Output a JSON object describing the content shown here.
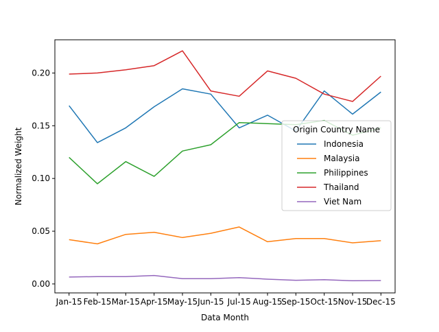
{
  "chart_data": {
    "type": "line",
    "title": "",
    "xlabel": "Data Month",
    "ylabel": "Normalized Weight",
    "categories": [
      "Jan-15",
      "Feb-15",
      "Mar-15",
      "Apr-15",
      "May-15",
      "Jun-15",
      "Jul-15",
      "Aug-15",
      "Sep-15",
      "Oct-15",
      "Nov-15",
      "Dec-15"
    ],
    "ylim": [
      -0.0085,
      0.2315
    ],
    "yticks": [
      0.0,
      0.05,
      0.1,
      0.15,
      0.2
    ],
    "ytick_labels": [
      "0.00",
      "0.05",
      "0.10",
      "0.15",
      "0.20"
    ],
    "grid": false,
    "legend": {
      "title": "Origin Country Name",
      "position": "center-right"
    },
    "series": [
      {
        "name": "Indonesia",
        "color": "#1f77b4",
        "values": [
          0.169,
          0.134,
          0.148,
          0.168,
          0.185,
          0.18,
          0.148,
          0.16,
          0.145,
          0.183,
          0.161,
          0.182
        ]
      },
      {
        "name": "Malaysia",
        "color": "#ff7f0e",
        "values": [
          0.042,
          0.038,
          0.047,
          0.049,
          0.044,
          0.048,
          0.054,
          0.04,
          0.043,
          0.043,
          0.039,
          0.041
        ]
      },
      {
        "name": "Philippines",
        "color": "#2ca02c",
        "values": [
          0.12,
          0.095,
          0.116,
          0.102,
          0.126,
          0.132,
          0.153,
          0.152,
          0.151,
          0.155,
          0.141,
          0.148
        ]
      },
      {
        "name": "Thailand",
        "color": "#d62728",
        "values": [
          0.199,
          0.2,
          0.203,
          0.207,
          0.221,
          0.183,
          0.178,
          0.202,
          0.195,
          0.18,
          0.173,
          0.197
        ]
      },
      {
        "name": "Viet Nam",
        "color": "#9467bd",
        "values": [
          0.0065,
          0.007,
          0.007,
          0.008,
          0.005,
          0.005,
          0.006,
          0.0045,
          0.0035,
          0.004,
          0.003,
          0.0032
        ]
      }
    ]
  }
}
